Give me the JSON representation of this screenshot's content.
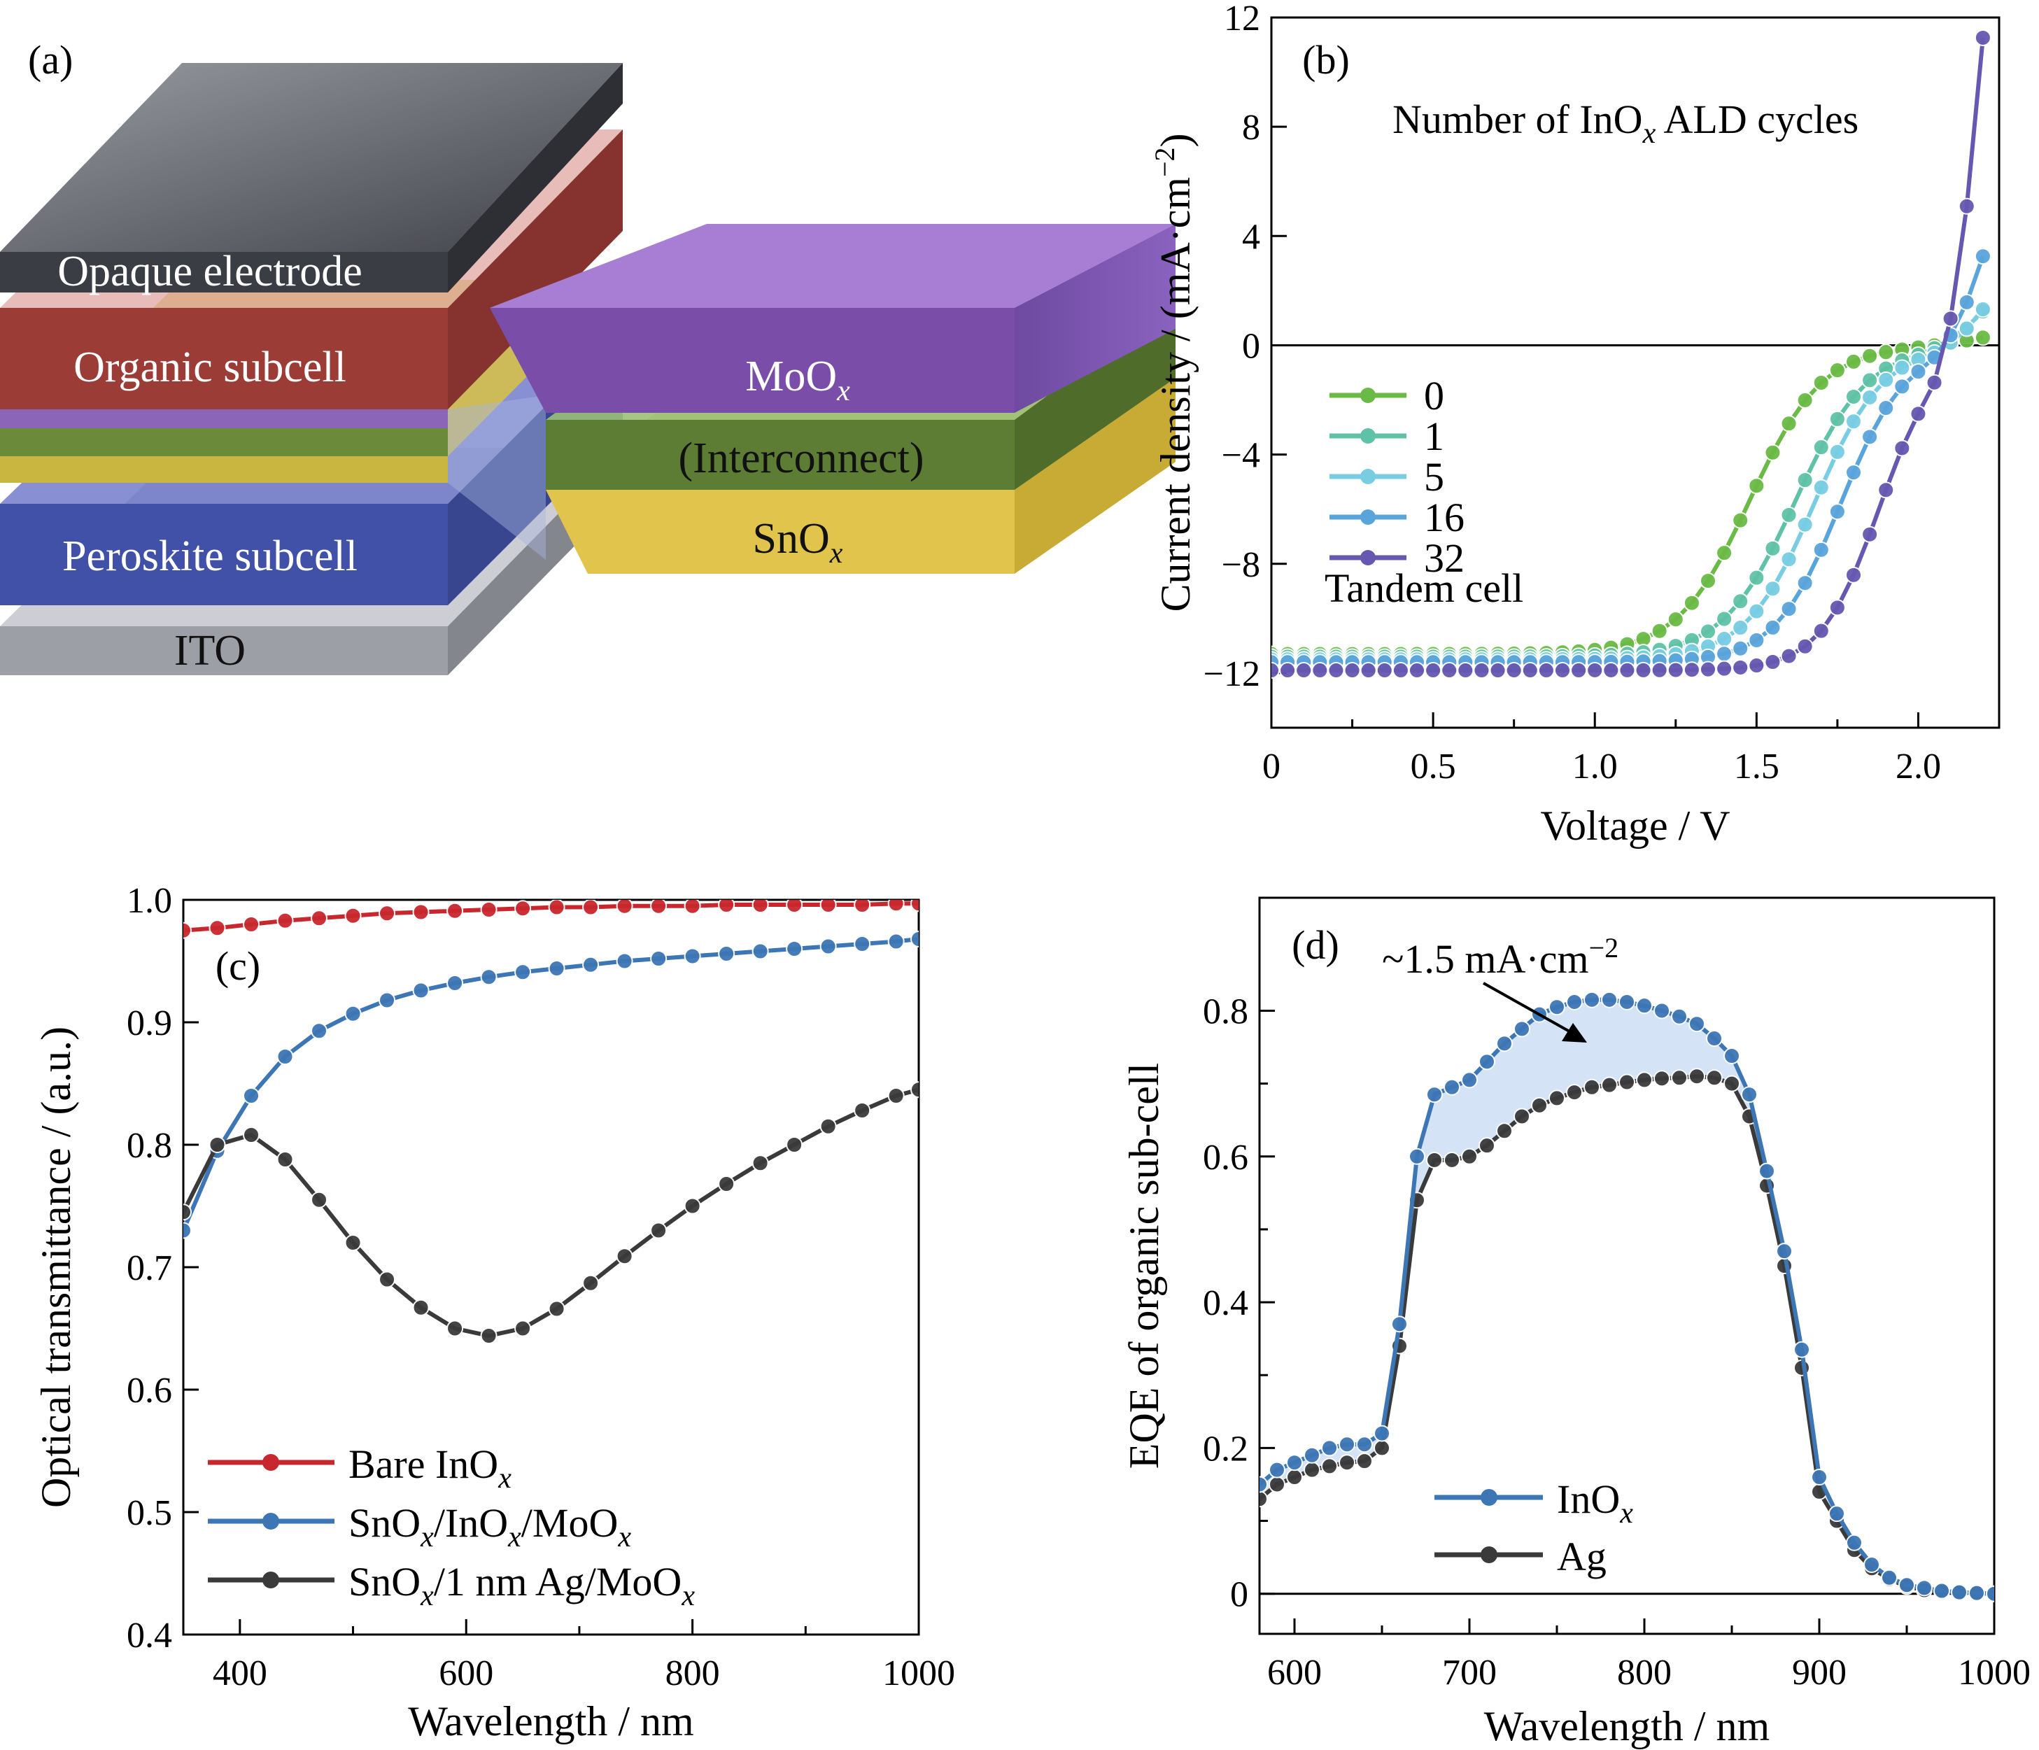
{
  "panel_a": {
    "label": "(a)",
    "layers": {
      "opaque_electrode": "Opaque electrode",
      "organic_subcell": "Organic subcell",
      "perovskite_subcell": "Peroskite subcell",
      "ito": "ITO",
      "moox": "MoO",
      "interconnect": "(Interconnect)",
      "snox": "SnO"
    },
    "sub_x": "x"
  },
  "chart_data": [
    {
      "panel": "(b)",
      "type": "line",
      "xlabel": "Voltage / V",
      "ylabel": "Current density / (mA·cm",
      "ylabel_sup": "−2",
      "ylabel_end": ")",
      "xlim": [
        0,
        2.25
      ],
      "ylim": [
        -14,
        12
      ],
      "xticks": [
        0,
        0.5,
        1.0,
        1.5,
        2.0
      ],
      "xtick_labels": [
        "0",
        "0.5",
        "1.0",
        "1.5",
        "2.0"
      ],
      "yticks": [
        -12,
        -8,
        -4,
        0,
        4,
        8,
        12
      ],
      "ytick_labels": [
        "−12",
        "−8",
        "−4",
        "0",
        "4",
        "8",
        "12"
      ],
      "zero_line": true,
      "annotation": "Number of InO",
      "annotation_sub": "x",
      "annotation_end": " ALD cycles",
      "legend_title": "Tandem cell",
      "legend_position": "left",
      "series": [
        {
          "name": "0",
          "color": "#6aba45",
          "jsc": -11.3,
          "v0": 1.48,
          "k": 9.0,
          "voc": 1.9,
          "end": 0.3
        },
        {
          "name": "1",
          "color": "#5fc2a6",
          "jsc": -11.4,
          "v0": 1.62,
          "k": 9.0,
          "voc": 1.97,
          "end": 1.3
        },
        {
          "name": "5",
          "color": "#78cde2",
          "jsc": -11.5,
          "v0": 1.68,
          "k": 9.5,
          "voc": 2.0,
          "end": 1.4
        },
        {
          "name": "16",
          "color": "#5aa4dc",
          "jsc": -11.6,
          "v0": 1.76,
          "k": 10.0,
          "voc": 2.0,
          "end": 3.4
        },
        {
          "name": "32",
          "color": "#6657b0",
          "jsc": -11.9,
          "v0": 1.88,
          "k": 11.0,
          "voc": 2.02,
          "end": 11.6
        }
      ]
    },
    {
      "panel": "(c)",
      "type": "line",
      "xlabel": "Wavelength / nm",
      "ylabel": "Optical transmittance / (a.u.)",
      "xlim": [
        350,
        1000
      ],
      "ylim": [
        0.4,
        1.0
      ],
      "xticks": [
        400,
        600,
        800,
        1000
      ],
      "xtick_labels": [
        "400",
        "600",
        "800",
        "1000"
      ],
      "yticks": [
        0.4,
        0.5,
        0.6,
        0.7,
        0.8,
        0.9,
        1.0
      ],
      "ytick_labels": [
        "0.4",
        "0.5",
        "0.6",
        "0.7",
        "0.8",
        "0.9",
        "1.0"
      ],
      "legend_position": "bottom-left",
      "series": [
        {
          "name": "Bare InO",
          "sub": "x",
          "name_end": "",
          "color": "#c8282d",
          "x": [
            350,
            380,
            410,
            440,
            470,
            500,
            530,
            560,
            590,
            620,
            650,
            680,
            710,
            740,
            770,
            800,
            830,
            860,
            890,
            920,
            950,
            980,
            1000
          ],
          "y": [
            0.975,
            0.977,
            0.98,
            0.983,
            0.985,
            0.987,
            0.989,
            0.99,
            0.991,
            0.992,
            0.993,
            0.994,
            0.994,
            0.995,
            0.995,
            0.995,
            0.996,
            0.996,
            0.996,
            0.996,
            0.996,
            0.997,
            0.997
          ]
        },
        {
          "name": "SnO",
          "sub": "x",
          "name_end": "/InO",
          "sub2": "x",
          "name_end2": "/MoO",
          "sub3": "x",
          "color": "#3d76b5",
          "x": [
            350,
            380,
            410,
            440,
            470,
            500,
            530,
            560,
            590,
            620,
            650,
            680,
            710,
            740,
            770,
            800,
            830,
            860,
            890,
            920,
            950,
            980,
            1000
          ],
          "y": [
            0.73,
            0.795,
            0.84,
            0.872,
            0.893,
            0.907,
            0.918,
            0.926,
            0.932,
            0.937,
            0.941,
            0.944,
            0.947,
            0.95,
            0.952,
            0.954,
            0.956,
            0.958,
            0.96,
            0.962,
            0.964,
            0.966,
            0.968
          ]
        },
        {
          "name": "SnO",
          "sub": "x",
          "name_end": "/1 nm Ag/MoO",
          "sub2": "x",
          "name_end2": "",
          "color": "#3a3a3a",
          "x": [
            350,
            380,
            410,
            440,
            470,
            500,
            530,
            560,
            590,
            620,
            650,
            680,
            710,
            740,
            770,
            800,
            830,
            860,
            890,
            920,
            950,
            980,
            1000
          ],
          "y": [
            0.745,
            0.8,
            0.808,
            0.788,
            0.755,
            0.72,
            0.69,
            0.667,
            0.65,
            0.644,
            0.65,
            0.666,
            0.687,
            0.709,
            0.73,
            0.75,
            0.768,
            0.785,
            0.8,
            0.815,
            0.828,
            0.84,
            0.845
          ]
        }
      ]
    },
    {
      "panel": "(d)",
      "type": "line",
      "xlabel": "Wavelength / nm",
      "ylabel": "EQE of organic sub-cell",
      "xlim": [
        580,
        1000
      ],
      "ylim": [
        -0.055,
        0.955
      ],
      "xticks": [
        600,
        700,
        800,
        900,
        1000
      ],
      "xtick_labels": [
        "600",
        "700",
        "800",
        "900",
        "1000"
      ],
      "yticks": [
        0,
        0.2,
        0.4,
        0.6,
        0.8
      ],
      "ytick_labels": [
        "0",
        "0.2",
        "0.4",
        "0.6",
        "0.8"
      ],
      "zero_line": true,
      "annotation": "~1.5 mA·cm",
      "annotation_sup": "−2",
      "legend_position": "bottom-center",
      "series": [
        {
          "name": "InO",
          "sub": "x",
          "color": "#3d76b5",
          "x": [
            580,
            590,
            600,
            610,
            620,
            630,
            640,
            650,
            660,
            670,
            680,
            690,
            700,
            710,
            720,
            730,
            740,
            750,
            760,
            770,
            780,
            790,
            800,
            810,
            820,
            830,
            840,
            850,
            860,
            870,
            880,
            890,
            900,
            910,
            920,
            930,
            940,
            950,
            960,
            970,
            980,
            990,
            1000
          ],
          "y": [
            0.15,
            0.17,
            0.18,
            0.19,
            0.2,
            0.205,
            0.205,
            0.22,
            0.37,
            0.6,
            0.685,
            0.695,
            0.705,
            0.73,
            0.755,
            0.775,
            0.795,
            0.805,
            0.812,
            0.815,
            0.815,
            0.812,
            0.807,
            0.8,
            0.792,
            0.782,
            0.762,
            0.738,
            0.685,
            0.58,
            0.47,
            0.335,
            0.16,
            0.11,
            0.07,
            0.04,
            0.022,
            0.012,
            0.008,
            0.004,
            0.002,
            0.001,
            0.0
          ]
        },
        {
          "name": "Ag",
          "color": "#3a3a3a",
          "x": [
            580,
            590,
            600,
            610,
            620,
            630,
            640,
            650,
            660,
            670,
            680,
            690,
            700,
            710,
            720,
            730,
            740,
            750,
            760,
            770,
            780,
            790,
            800,
            810,
            820,
            830,
            840,
            850,
            860,
            870,
            880,
            890,
            900,
            910,
            920,
            930,
            940,
            950,
            960,
            970,
            980,
            990,
            1000
          ],
          "y": [
            0.13,
            0.15,
            0.16,
            0.17,
            0.175,
            0.18,
            0.182,
            0.2,
            0.34,
            0.54,
            0.595,
            0.595,
            0.6,
            0.615,
            0.635,
            0.655,
            0.67,
            0.68,
            0.688,
            0.695,
            0.698,
            0.702,
            0.705,
            0.707,
            0.708,
            0.71,
            0.708,
            0.7,
            0.655,
            0.56,
            0.45,
            0.31,
            0.14,
            0.1,
            0.06,
            0.035,
            0.02,
            0.01,
            0.005,
            0.003,
            0.002,
            0.001,
            0.0
          ]
        }
      ]
    }
  ]
}
